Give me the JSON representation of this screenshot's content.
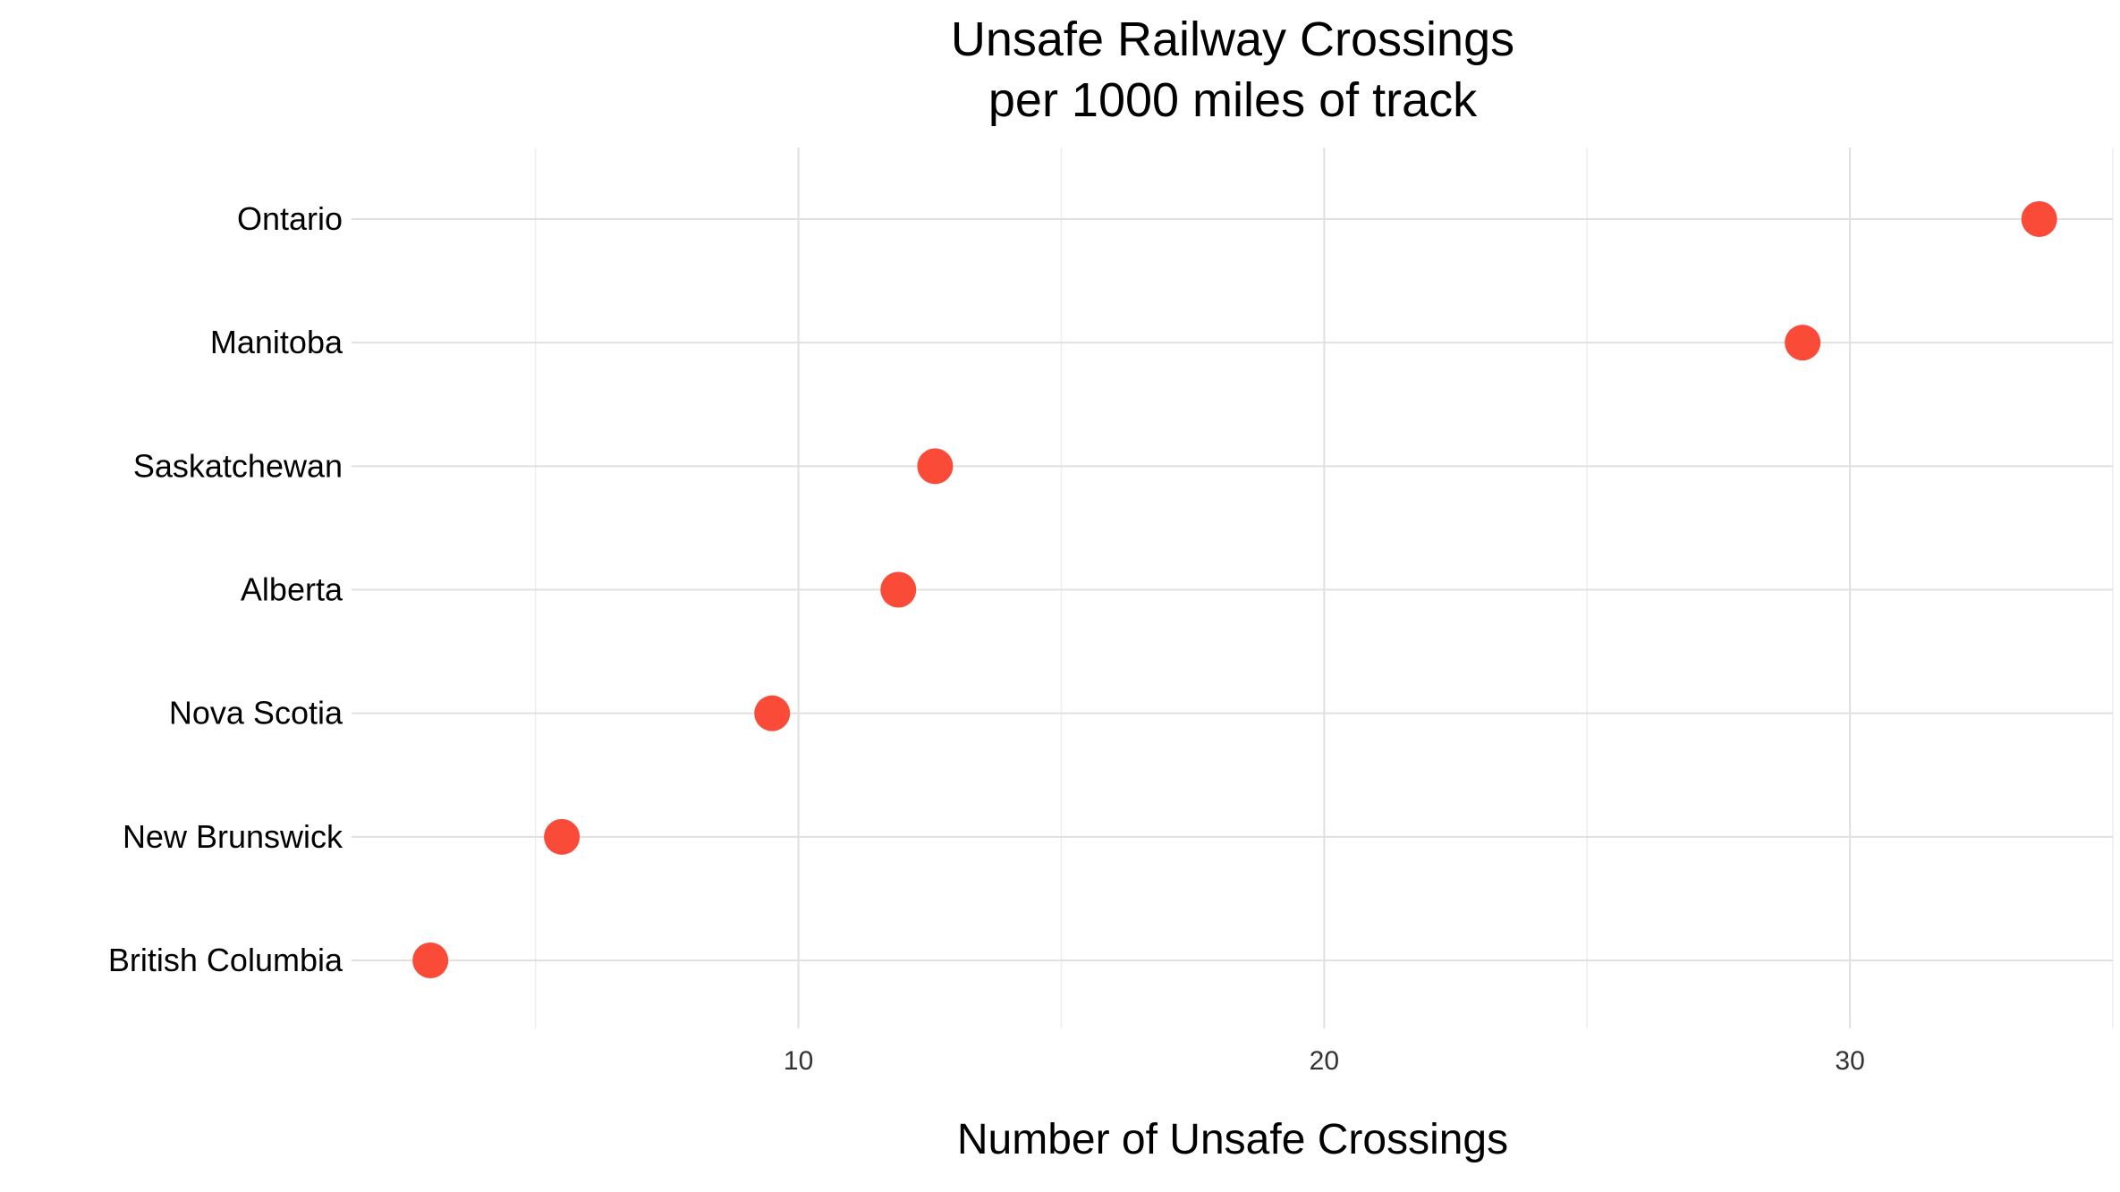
{
  "chart_data": {
    "type": "scatter",
    "title": "Unsafe Railway Crossings",
    "subtitle": "per 1000 miles of track",
    "xlabel": "Number of Unsafe Crossings",
    "ylabel": "",
    "categories": [
      "Ontario",
      "Manitoba",
      "Saskatchewan",
      "Alberta",
      "Nova Scotia",
      "New Brunswick",
      "British Columbia"
    ],
    "values": [
      33.6,
      29.1,
      12.6,
      11.9,
      9.5,
      5.5,
      3.0
    ],
    "xlim": [
      1.5,
      35.0
    ],
    "xticks": [
      10,
      20,
      30
    ],
    "xtick_labels": [
      "10",
      "20",
      "30"
    ],
    "x_minor_ticks": [
      5,
      15,
      25,
      35
    ],
    "grid": true,
    "point_color": "#F94B38"
  }
}
